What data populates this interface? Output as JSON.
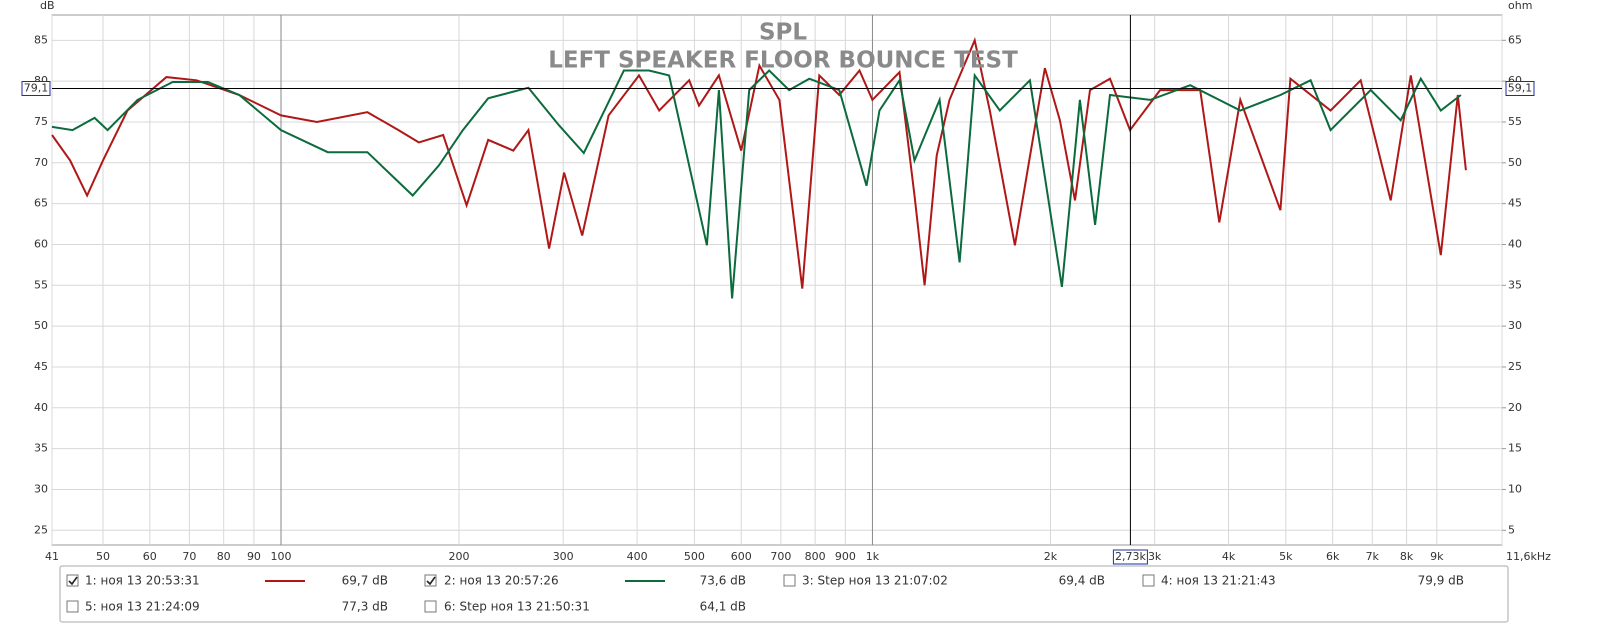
{
  "chart_data": {
    "type": "line",
    "title": "SPL",
    "subtitle": "LEFT SPEAKER FLOOR BOUNCE TEST",
    "y_label": "dB",
    "y2_label": "ohm",
    "log_x": true,
    "grid": true,
    "xlim": [
      41,
      11600
    ],
    "ylim": [
      23.2,
      88.1
    ],
    "y2lim": [
      3.2,
      68.1
    ],
    "xticks": [
      41,
      50,
      60,
      70,
      80,
      90,
      100,
      200,
      300,
      400,
      500,
      600,
      700,
      800,
      900,
      {
        "value": 1000,
        "label": "1k"
      },
      {
        "value": 2000,
        "label": "2k"
      },
      {
        "value": 3000,
        "label": "3k"
      },
      {
        "value": 4000,
        "label": "4k"
      },
      {
        "value": 5000,
        "label": "5k"
      },
      {
        "value": 6000,
        "label": "6k"
      },
      {
        "value": 7000,
        "label": "7k"
      },
      {
        "value": 8000,
        "label": "8k"
      },
      {
        "value": 9000,
        "label": "9k"
      },
      {
        "value": 11600,
        "label": "11,6kHz"
      }
    ],
    "yticks": [
      25,
      30,
      35,
      40,
      45,
      50,
      55,
      60,
      65,
      70,
      75,
      80,
      85
    ],
    "y2ticks": [
      5,
      10,
      15,
      20,
      25,
      30,
      35,
      40,
      45,
      50,
      55,
      60,
      65
    ],
    "cursor": {
      "x": {
        "value": 2730,
        "label": "2,73k"
      },
      "y": {
        "value": 79.1,
        "label": "79,1"
      },
      "y2": {
        "value": 59.1,
        "label": "59,1"
      }
    },
    "series": [
      {
        "color": "#b01818",
        "x": [
          41,
          44,
          47,
          50,
          55,
          64,
          72,
          85,
          100,
          115,
          140,
          158,
          171,
          188,
          206,
          224,
          247,
          262,
          284,
          301,
          323,
          358,
          403,
          436,
          490,
          509,
          550,
          600,
          644,
          696,
          761,
          813,
          879,
          951,
          1000,
          1111,
          1178,
          1225,
          1284,
          1350,
          1489,
          1579,
          1741,
          1957,
          2075,
          2200,
          2333,
          2522,
          2726,
          3065,
          3583,
          3859,
          4188,
          4895,
          5090,
          5952,
          6691,
          7520,
          8132,
          9142,
          9768,
          10080
        ],
        "values": [
          73.4,
          70.3,
          66.0,
          70.3,
          76.4,
          80.5,
          80.1,
          78.3,
          75.8,
          75.0,
          76.2,
          74.0,
          72.5,
          73.4,
          64.8,
          72.8,
          71.5,
          74.0,
          59.5,
          68.8,
          61.1,
          75.8,
          80.7,
          76.4,
          80.1,
          77.0,
          80.7,
          71.5,
          81.9,
          77.7,
          54.6,
          80.7,
          78.3,
          81.3,
          77.7,
          81.1,
          66.0,
          55.0,
          70.9,
          77.7,
          85.0,
          76.4,
          59.9,
          81.6,
          75.2,
          65.4,
          78.9,
          80.3,
          74.0,
          78.9,
          78.9,
          62.7,
          77.7,
          64.2,
          80.3,
          76.4,
          80.1,
          65.4,
          80.7,
          58.7,
          78.3,
          69.1
        ]
      },
      {
        "color": "#0b6b3c",
        "x": [
          41,
          44.4,
          48.4,
          50.9,
          57.2,
          65.6,
          75.2,
          85,
          100,
          120,
          140,
          167,
          185,
          203,
          224,
          262,
          295,
          325,
          380,
          419,
          453,
          525,
          550,
          579,
          619,
          669,
          723,
          782,
          879,
          977,
          1028,
          1111,
          1178,
          1299,
          1404,
          1489,
          1642,
          1846,
          2091,
          2243,
          2379,
          2522,
          2949,
          3446,
          4188,
          4895,
          5505,
          5952,
          6957,
          7821,
          8456,
          9142,
          9883
        ],
        "values": [
          74.4,
          74.0,
          75.5,
          74.0,
          77.7,
          79.9,
          79.9,
          78.3,
          74.0,
          71.3,
          71.3,
          66.0,
          69.7,
          74.0,
          77.9,
          79.2,
          74.6,
          71.2,
          81.3,
          81.3,
          80.7,
          59.9,
          78.9,
          53.4,
          78.9,
          81.3,
          78.9,
          80.3,
          78.9,
          67.2,
          76.4,
          80.1,
          70.3,
          77.7,
          57.8,
          80.7,
          76.4,
          80.1,
          54.8,
          77.7,
          62.4,
          78.3,
          77.7,
          79.5,
          76.4,
          78.3,
          80.1,
          74.0,
          78.9,
          75.2,
          80.3,
          76.4,
          78.3
        ]
      }
    ]
  },
  "legend": [
    {
      "checked": true,
      "label": "1: ноя 13 20:53:31",
      "color": "#b01818",
      "level": "69,7 dB",
      "sample": true
    },
    {
      "checked": true,
      "label": "2: ноя 13 20:57:26",
      "color": "#0b6b3c",
      "level": "73,6 dB",
      "sample": true
    },
    {
      "checked": false,
      "label": "3: Step ноя 13 21:07:02",
      "color": "#5a5aa8",
      "level": "69,4 dB",
      "sample": false
    },
    {
      "checked": false,
      "label": "4: ноя 13 21:21:43",
      "color": "#d08020",
      "level": "79,9 dB",
      "sample": false
    },
    {
      "checked": false,
      "label": "5: ноя 13 21:24:09",
      "color": "#22a02a",
      "level": "77,3 dB",
      "sample": false
    },
    {
      "checked": false,
      "label": "6: Step ноя 13 21:50:31",
      "color": "#2a78b8",
      "level": "64,1 dB",
      "sample": false
    }
  ]
}
